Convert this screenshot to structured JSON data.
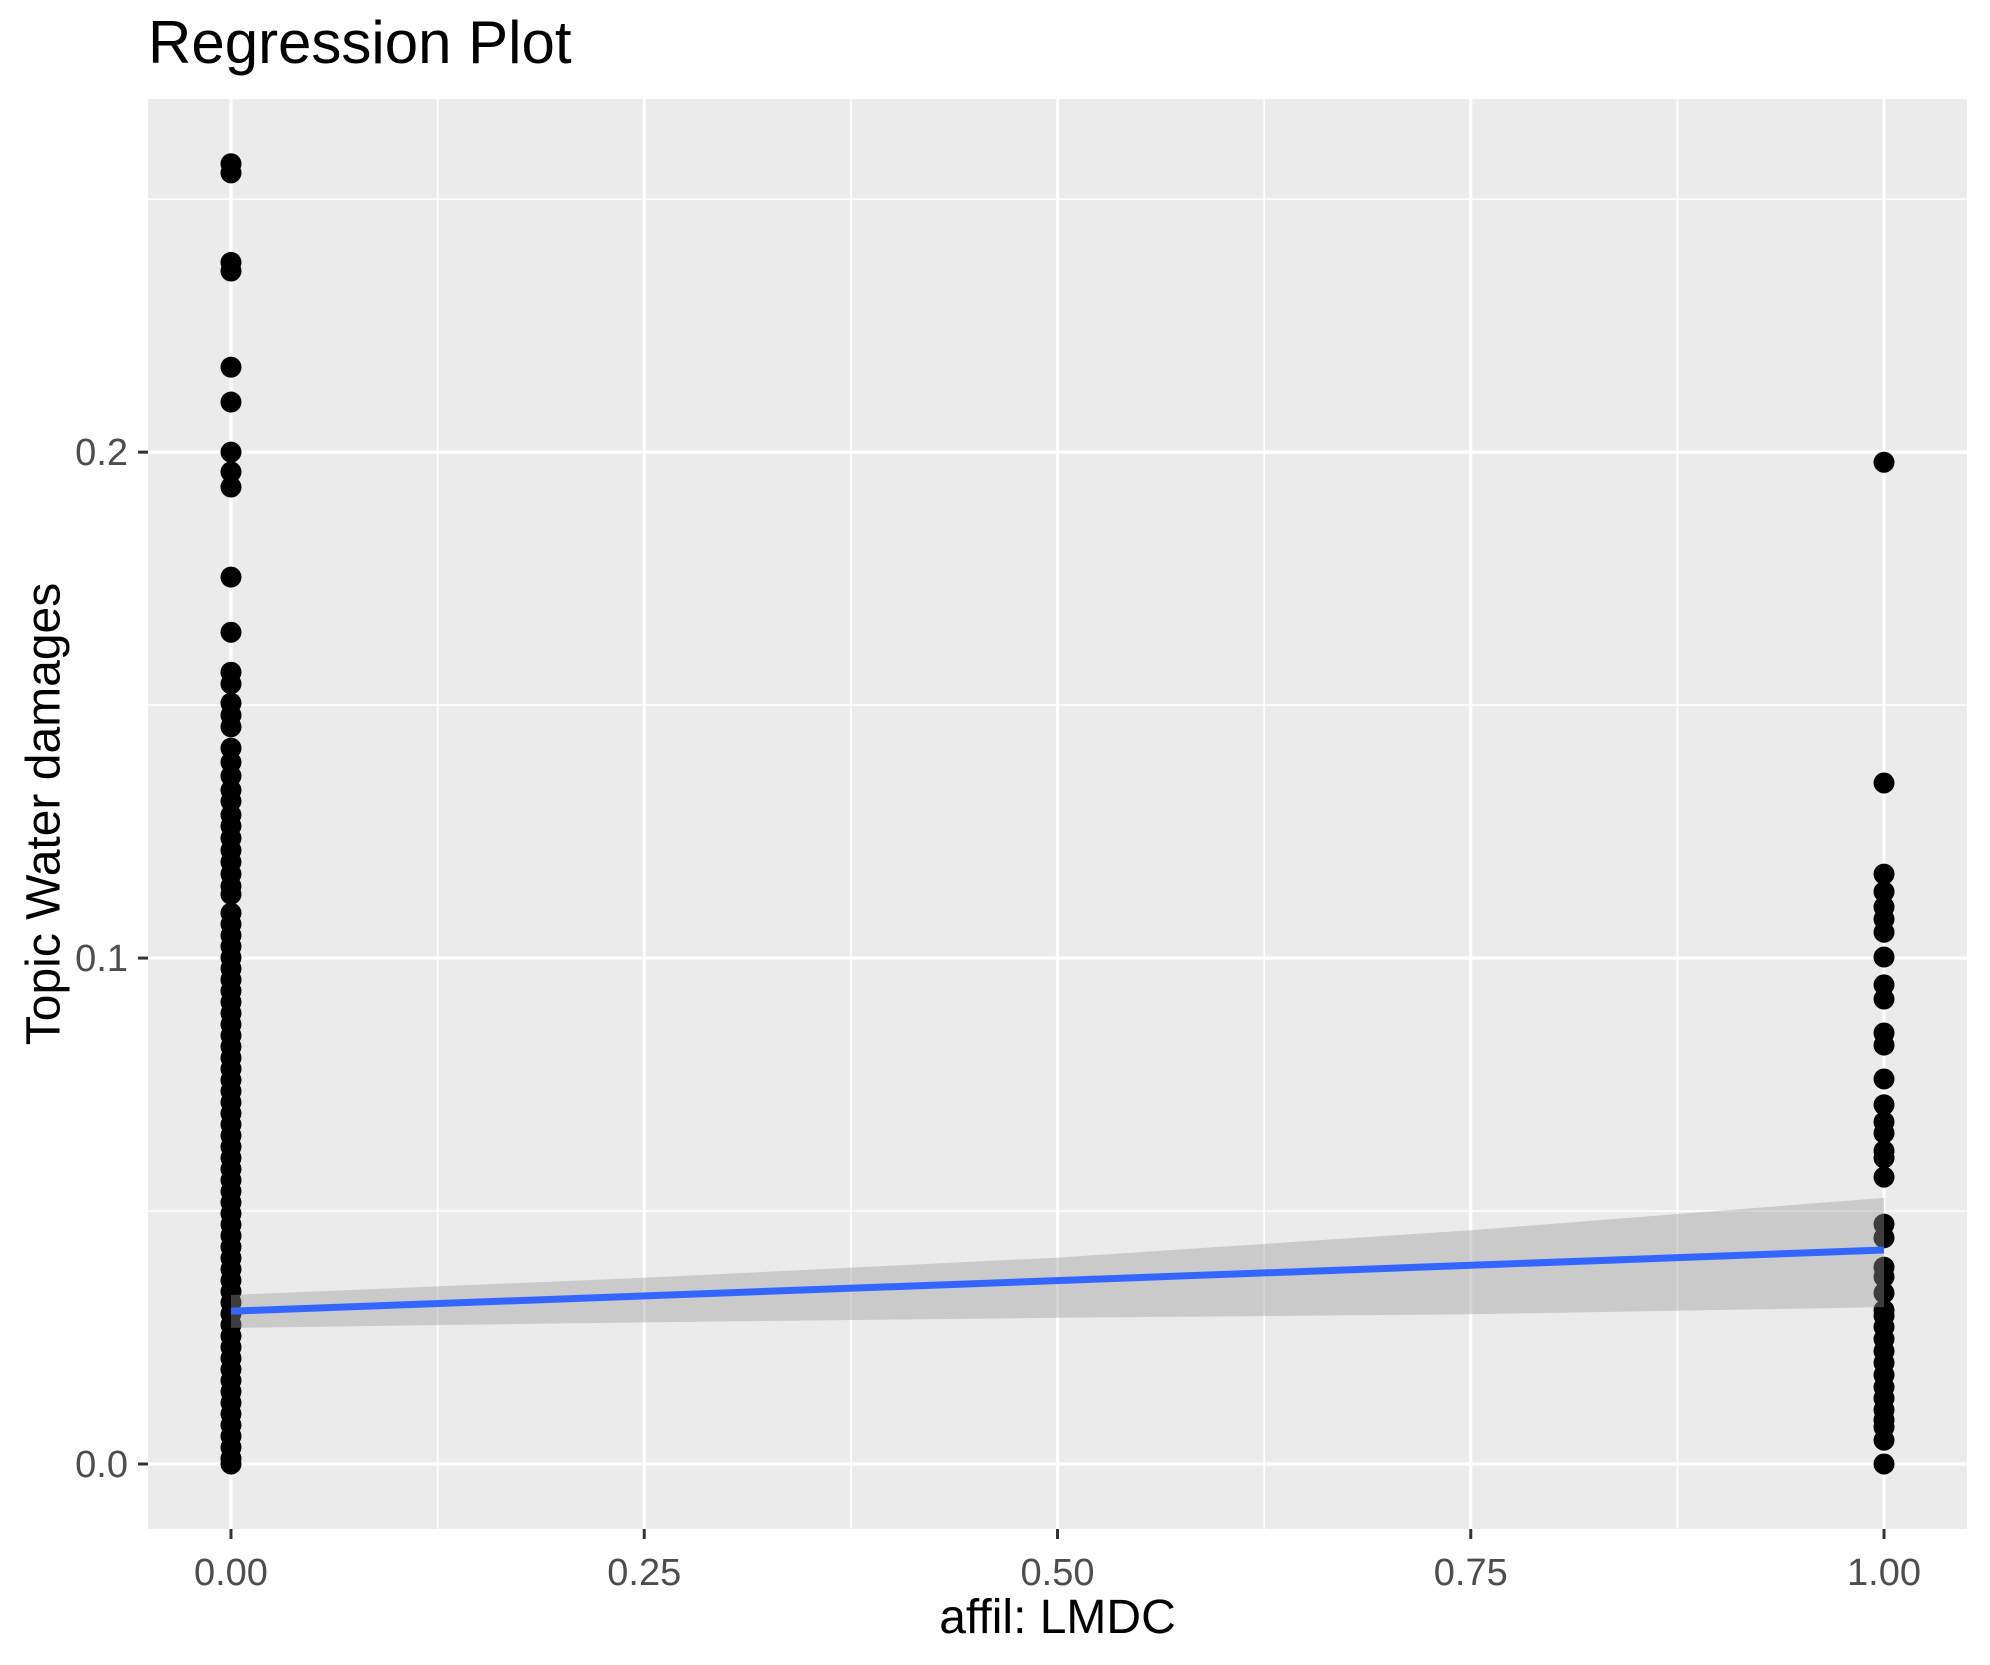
{
  "chart_data": {
    "type": "scatter",
    "title": "Regression Plot",
    "xlabel": "affil: LMDC",
    "ylabel": "Topic Water damages",
    "legend": "none",
    "grid": true,
    "xlim": [
      -0.05,
      1.05
    ],
    "ylim": [
      -0.013,
      0.27
    ],
    "x_ticks": [
      "0.00",
      "0.25",
      "0.50",
      "0.75",
      "1.00"
    ],
    "x_tick_values": [
      0,
      0.25,
      0.5,
      0.75,
      1.0
    ],
    "x_minor_values": [
      0.125,
      0.375,
      0.625,
      0.875
    ],
    "y_ticks": [
      "0.0",
      "0.1",
      "0.2"
    ],
    "y_tick_values": [
      0,
      0.1,
      0.2
    ],
    "y_minor_values": [
      0.05,
      0.15,
      0.25
    ],
    "series": [
      {
        "name": "affil LMDC = 0",
        "x": 0,
        "y": [
          0.257,
          0.2552,
          0.2375,
          0.2358,
          0.2168,
          0.2099,
          0.2,
          0.1961,
          0.1931,
          0.1753,
          0.1644,
          0.1565,
          0.1542,
          0.1504,
          0.148,
          0.1457,
          0.1415,
          0.1387,
          0.136,
          0.1332,
          0.131,
          0.1283,
          0.1261,
          0.1237,
          0.1213,
          0.119,
          0.1166,
          0.1142,
          0.1126,
          0.1089,
          0.1067,
          0.1045,
          0.1023,
          0.1001,
          0.0979,
          0.0957,
          0.0935,
          0.0913,
          0.0891,
          0.0869,
          0.0847,
          0.0825,
          0.0803,
          0.0781,
          0.0759,
          0.0737,
          0.0715,
          0.0693,
          0.0671,
          0.0649,
          0.0627,
          0.0605,
          0.0583,
          0.0561,
          0.0539,
          0.0517,
          0.0495,
          0.0473,
          0.0451,
          0.0429,
          0.0407,
          0.0385,
          0.0363,
          0.0341,
          0.0319,
          0.0297,
          0.0275,
          0.0253,
          0.0231,
          0.0209,
          0.0187,
          0.0165,
          0.0143,
          0.0121,
          0.0099,
          0.0077,
          0.0055,
          0.0033,
          0.0011,
          0.0
        ]
      },
      {
        "name": "affil LMDC = 1",
        "x": 1,
        "y": [
          0.198,
          0.1346,
          0.1166,
          0.1131,
          0.1101,
          0.1077,
          0.1051,
          0.1002,
          0.0947,
          0.0919,
          0.0852,
          0.0828,
          0.0761,
          0.071,
          0.0676,
          0.0654,
          0.0619,
          0.0605,
          0.0567,
          0.0474,
          0.0447,
          0.0389,
          0.037,
          0.0338,
          0.0304,
          0.0293,
          0.0271,
          0.0247,
          0.0223,
          0.02,
          0.0176,
          0.0152,
          0.013,
          0.0107,
          0.0087,
          0.0073,
          0.0047,
          0.0
        ]
      }
    ],
    "regression_line": {
      "x": [
        0,
        1
      ],
      "y": [
        0.0302,
        0.0423
      ],
      "color": "#3366FF"
    },
    "confidence_band": {
      "x": [
        0,
        0.25,
        0.5,
        0.75,
        1
      ],
      "upper": [
        0.0334,
        0.0368,
        0.0408,
        0.0462,
        0.0526
      ],
      "lower": [
        0.0269,
        0.028,
        0.0289,
        0.0296,
        0.031
      ],
      "color": "#999999",
      "opacity": 0.4
    },
    "colors": {
      "panel_background": "#EBEBEB",
      "gridline": "#FFFFFF",
      "point": "#000000",
      "tick_mark": "#333333",
      "tick_label": "#4D4D4D",
      "text": "#000000"
    }
  }
}
